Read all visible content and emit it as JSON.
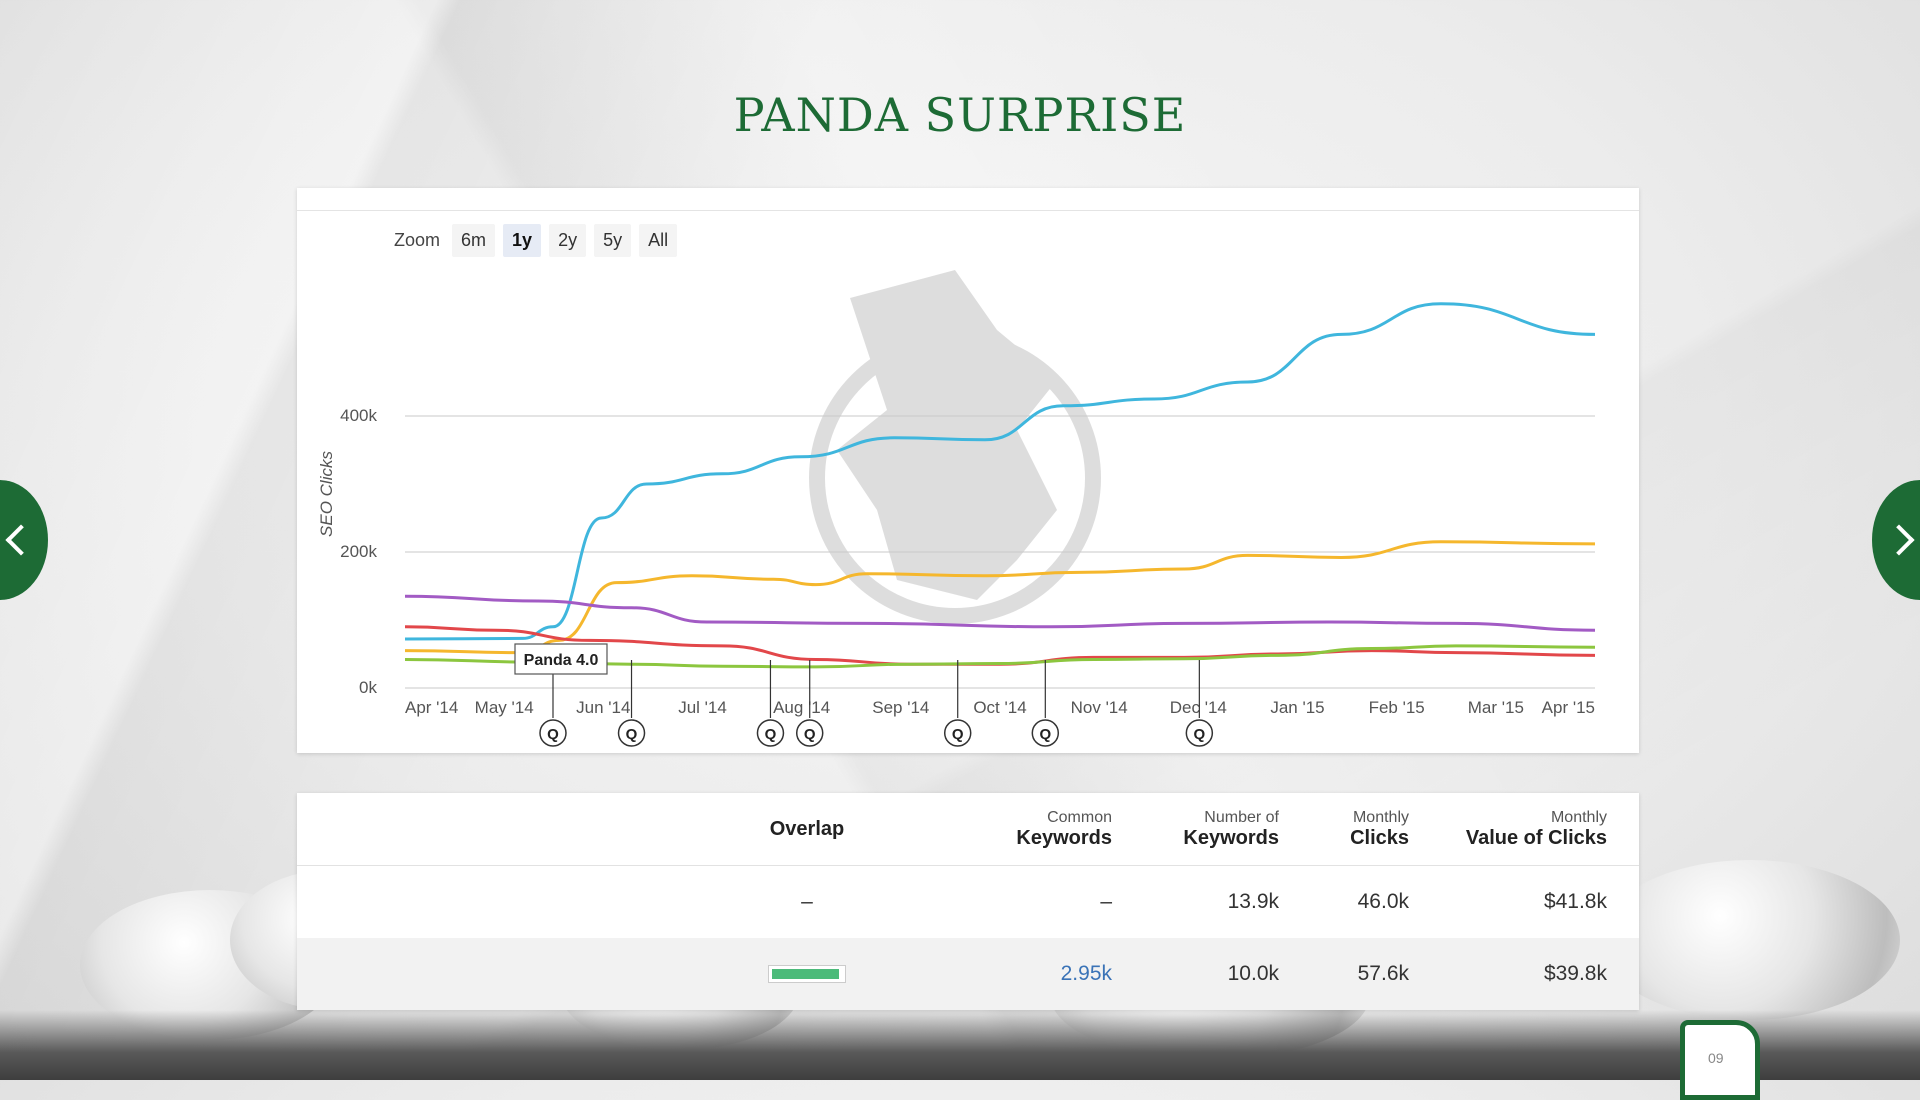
{
  "title": "PANDA SURPRISE",
  "zoom": {
    "label": "Zoom",
    "options": [
      "6m",
      "1y",
      "2y",
      "5y",
      "All"
    ],
    "active": "1y"
  },
  "chart_data": {
    "type": "line",
    "ylabel": "SEO Clicks",
    "ylim": [
      0,
      600000
    ],
    "yticks": [
      {
        "value": 0,
        "label": "0k"
      },
      {
        "value": 200000,
        "label": "200k"
      },
      {
        "value": 400000,
        "label": "400k"
      }
    ],
    "x_tick_labels": [
      "Apr '14",
      "May '14",
      "Jun '14",
      "Jul '14",
      "Aug '14",
      "Sep '14",
      "Oct '14",
      "Nov '14",
      "Dec '14",
      "Jan '15",
      "Feb '15",
      "Mar '15",
      "Apr '15"
    ],
    "x_range": [
      "2014-04-01",
      "2015-04-30"
    ],
    "series": [
      {
        "color": "#3fb6dd",
        "points": [
          [
            "2014-04-01",
            72000
          ],
          [
            "2014-05-10",
            73000
          ],
          [
            "2014-05-20",
            90000
          ],
          [
            "2014-06-05",
            250000
          ],
          [
            "2014-06-20",
            300000
          ],
          [
            "2014-07-15",
            315000
          ],
          [
            "2014-08-10",
            340000
          ],
          [
            "2014-09-10",
            368000
          ],
          [
            "2014-10-10",
            365000
          ],
          [
            "2014-11-05",
            415000
          ],
          [
            "2014-12-05",
            425000
          ],
          [
            "2015-01-05",
            450000
          ],
          [
            "2015-02-05",
            520000
          ],
          [
            "2015-03-10",
            565000
          ],
          [
            "2015-04-30",
            520000
          ]
        ]
      },
      {
        "color": "#f5b72d",
        "points": [
          [
            "2014-04-01",
            55000
          ],
          [
            "2014-05-10",
            52000
          ],
          [
            "2014-05-22",
            70000
          ],
          [
            "2014-06-10",
            155000
          ],
          [
            "2014-07-05",
            165000
          ],
          [
            "2014-08-01",
            160000
          ],
          [
            "2014-08-15",
            152000
          ],
          [
            "2014-09-01",
            168000
          ],
          [
            "2014-10-10",
            165000
          ],
          [
            "2014-11-10",
            170000
          ],
          [
            "2014-12-15",
            175000
          ],
          [
            "2015-01-05",
            195000
          ],
          [
            "2015-02-05",
            192000
          ],
          [
            "2015-03-10",
            215000
          ],
          [
            "2015-04-30",
            212000
          ]
        ]
      },
      {
        "color": "#a25bc4",
        "points": [
          [
            "2014-04-01",
            135000
          ],
          [
            "2014-05-15",
            128000
          ],
          [
            "2014-06-15",
            118000
          ],
          [
            "2014-07-10",
            97000
          ],
          [
            "2014-09-01",
            95000
          ],
          [
            "2014-11-01",
            90000
          ],
          [
            "2014-12-15",
            95000
          ],
          [
            "2015-02-01",
            97000
          ],
          [
            "2015-03-15",
            95000
          ],
          [
            "2015-04-30",
            85000
          ]
        ]
      },
      {
        "color": "#e2474a",
        "points": [
          [
            "2014-04-01",
            90000
          ],
          [
            "2014-05-01",
            85000
          ],
          [
            "2014-06-01",
            70000
          ],
          [
            "2014-07-15",
            62000
          ],
          [
            "2014-08-15",
            42000
          ],
          [
            "2014-09-15",
            35000
          ],
          [
            "2014-10-15",
            35000
          ],
          [
            "2014-11-15",
            45000
          ],
          [
            "2014-12-15",
            45000
          ],
          [
            "2015-01-15",
            50000
          ],
          [
            "2015-02-15",
            55000
          ],
          [
            "2015-03-15",
            52000
          ],
          [
            "2015-04-30",
            48000
          ]
        ]
      },
      {
        "color": "#8cc63f",
        "points": [
          [
            "2014-04-01",
            42000
          ],
          [
            "2014-05-15",
            38000
          ],
          [
            "2014-06-15",
            35000
          ],
          [
            "2014-07-15",
            32000
          ],
          [
            "2014-08-15",
            31000
          ],
          [
            "2014-09-15",
            35000
          ],
          [
            "2014-10-15",
            36000
          ],
          [
            "2014-11-15",
            42000
          ],
          [
            "2014-12-15",
            43000
          ],
          [
            "2015-01-15",
            48000
          ],
          [
            "2015-02-15",
            58000
          ],
          [
            "2015-03-15",
            62000
          ],
          [
            "2015-04-30",
            60000
          ]
        ]
      }
    ],
    "annotations": [
      {
        "label": "Panda 4.0",
        "date": "2014-05-20"
      }
    ],
    "flags": [
      {
        "label": "Q",
        "date": "2014-05-20"
      },
      {
        "label": "Q",
        "date": "2014-06-15"
      },
      {
        "label": "Q",
        "date": "2014-07-31"
      },
      {
        "label": "Q",
        "date": "2014-08-13"
      },
      {
        "label": "Q",
        "date": "2014-10-01"
      },
      {
        "label": "Q",
        "date": "2014-10-30"
      },
      {
        "label": "Q",
        "date": "2014-12-20"
      }
    ]
  },
  "table": {
    "headers": {
      "overlap": "Overlap",
      "common": {
        "small": "Common",
        "big": "Keywords"
      },
      "number": {
        "small": "Number of",
        "big": "Keywords"
      },
      "monthly_clicks": {
        "small": "Monthly",
        "big": "Clicks"
      },
      "value": {
        "small": "Monthly",
        "big": "Value of Clicks"
      }
    },
    "rows": [
      {
        "overlap": "–",
        "common": "–",
        "number": "13.9k",
        "clicks": "46.0k",
        "value": "$41.8k"
      },
      {
        "overlap_fraction": 0.95,
        "common": "2.95k",
        "number": "10.0k",
        "clicks": "57.6k",
        "value": "$39.8k"
      }
    ]
  },
  "page_number": "09",
  "colors": {
    "brand_green": "#1d6b35",
    "overlap_fill": "#4cbb7a",
    "link": "#3a73b7"
  }
}
